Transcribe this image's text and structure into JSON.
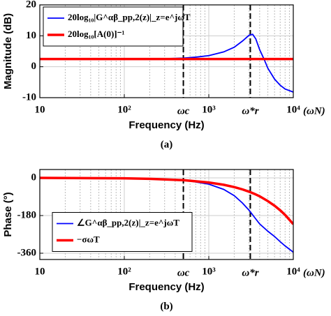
{
  "chart_data": [
    {
      "type": "line",
      "title": "(a)",
      "xlabel": "Frequency (Hz)",
      "ylabel": "Magnitude (dB)",
      "xscale": "log",
      "xlim": [
        10,
        10000
      ],
      "xticks": [
        10,
        {
          "value": 100,
          "label": "10²"
        },
        {
          "value": 1000,
          "label": "10³"
        },
        {
          "value": 10000,
          "label": "10⁴"
        }
      ],
      "xminorticks": [
        20,
        30,
        40,
        50,
        60,
        70,
        80,
        90,
        200,
        300,
        400,
        500,
        600,
        700,
        800,
        900,
        2000,
        3000,
        4000,
        5000,
        6000,
        7000,
        8000,
        9000
      ],
      "xtick_annotation": "(ωN)",
      "ylim": [
        -10,
        20
      ],
      "yticks": [
        20,
        10,
        0,
        -10
      ],
      "grid": true,
      "legend": "upper left",
      "vlines": [
        {
          "x": 500,
          "label": "ωc"
        },
        {
          "x": 3100,
          "label": "ω*r"
        }
      ],
      "vline_label_color": "#e00000",
      "x": [
        10,
        20,
        50,
        100,
        200,
        300,
        500,
        700,
        1000,
        1500,
        2000,
        2500,
        3000,
        3300,
        3600,
        4000,
        4500,
        5000,
        6000,
        7000,
        8000,
        10000
      ],
      "series": [
        {
          "name": "20log₁₀|G^αβ_pp,2(z)|_z=e^jωT",
          "color": "#0000ff",
          "width": 1.8,
          "values": [
            2.5,
            2.5,
            2.5,
            2.5,
            2.5,
            2.6,
            2.8,
            3.1,
            3.6,
            4.8,
            6.3,
            8.3,
            10.2,
            10.5,
            9.0,
            5.5,
            2.5,
            -0.5,
            -4,
            -6,
            -7.2,
            -8.2
          ]
        },
        {
          "name": "20log₁₀[A(0)]⁻¹",
          "color": "#ff0000",
          "width": 3.5,
          "values": [
            2.5,
            2.5,
            2.5,
            2.5,
            2.5,
            2.5,
            2.5,
            2.5,
            2.5,
            2.5,
            2.5,
            2.5,
            2.5,
            2.5,
            2.5,
            2.5,
            2.5,
            2.5,
            2.5,
            2.5,
            2.5,
            2.5
          ]
        }
      ]
    },
    {
      "type": "line",
      "title": "(b)",
      "xlabel": "Frequency (Hz)",
      "ylabel": "Phase (°)",
      "xscale": "log",
      "xlim": [
        10,
        10000
      ],
      "xticks": [
        10,
        {
          "value": 100,
          "label": "10²"
        },
        {
          "value": 1000,
          "label": "10³"
        },
        {
          "value": 10000,
          "label": "10⁴"
        }
      ],
      "xminorticks": [
        20,
        30,
        40,
        50,
        60,
        70,
        80,
        90,
        200,
        300,
        400,
        500,
        600,
        700,
        800,
        900,
        2000,
        3000,
        4000,
        5000,
        6000,
        7000,
        8000,
        9000
      ],
      "xtick_annotation": "(ωN)",
      "ylim": [
        -390,
        40
      ],
      "yticks": [
        0,
        -180,
        -360
      ],
      "grid": true,
      "legend": "center left",
      "vlines": [
        {
          "x": 500,
          "label": "ωc"
        },
        {
          "x": 3100,
          "label": "ω*r"
        }
      ],
      "vline_label_color": "#e00000",
      "x": [
        10,
        100,
        200,
        500,
        1000,
        1500,
        2000,
        2500,
        3000,
        3500,
        4000,
        5000,
        6000,
        7000,
        8000,
        10000
      ],
      "series": [
        {
          "name": "∠G^αβ_pp,2(z)|_z=e^jωT",
          "color": "#0000ff",
          "width": 1.8,
          "values": [
            0,
            -1,
            -3,
            -10,
            -30,
            -55,
            -85,
            -120,
            -155,
            -190,
            -220,
            -255,
            -280,
            -305,
            -325,
            -355
          ]
        },
        {
          "name": "−σωT",
          "color": "#ff0000",
          "width": 3.5,
          "values": [
            -0.2,
            -2.2,
            -4.4,
            -11,
            -22,
            -33,
            -44,
            -55,
            -66,
            -77,
            -88,
            -111,
            -133,
            -155,
            -177,
            -221
          ]
        }
      ]
    }
  ]
}
